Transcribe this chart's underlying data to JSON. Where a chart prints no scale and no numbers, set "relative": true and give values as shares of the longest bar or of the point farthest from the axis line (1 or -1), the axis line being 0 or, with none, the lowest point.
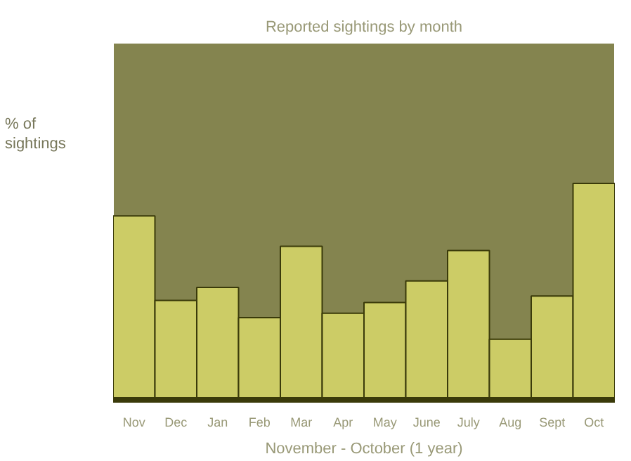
{
  "chart_data": {
    "type": "bar",
    "title": "Reported sightings by month",
    "xlabel": "November - October (1 year)",
    "ylabel": "% of sightings",
    "categories": [
      "Nov",
      "Dec",
      "Jan",
      "Feb",
      "Mar",
      "Apr",
      "May",
      "June",
      "July",
      "Aug",
      "Sept",
      "Oct"
    ],
    "values": [
      0.85,
      0.46,
      0.52,
      0.38,
      0.71,
      0.4,
      0.45,
      0.55,
      0.69,
      0.28,
      0.48,
      1
    ],
    "color": "#cccc66",
    "relative": true
  }
}
